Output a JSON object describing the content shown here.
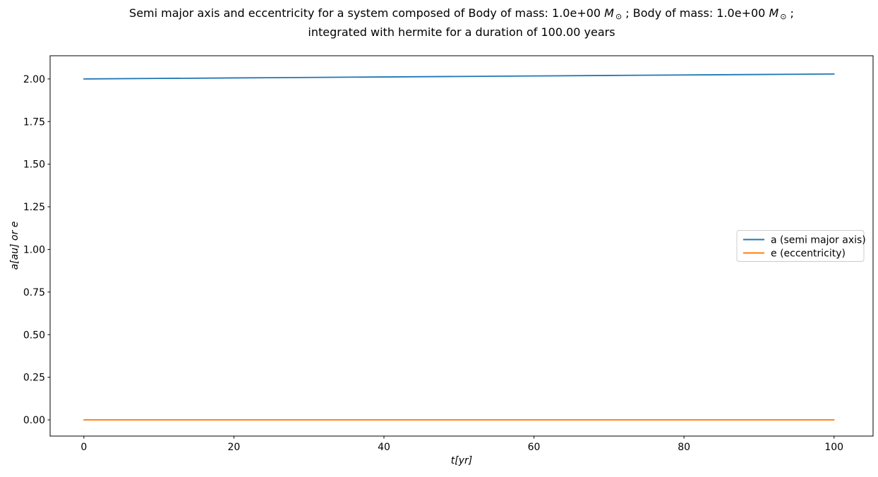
{
  "title": {
    "l1a": "Semi major axis and eccentricity for a system composed of Body of mass: 1.0e+00 ",
    "msun_letter": "M",
    "sun_symbol": "⊙",
    "l1b": " ; Body of mass: 1.0e+00 ",
    "l1c": " ;",
    "line2": "integrated with hermite for a duration of 100.00 years"
  },
  "chart_data": {
    "type": "line",
    "title_line1": "Semi major axis and eccentricity for a system composed of Body of mass: 1.0e+00 M⊙ ; Body of mass: 1.0e+00 M⊙ ;",
    "title_line2": "integrated with hermite for a duration of 100.00 years",
    "xlabel": "t[yr]",
    "ylabel": "a[au] or e",
    "x": [
      0,
      10,
      20,
      30,
      40,
      50,
      60,
      70,
      80,
      90,
      100
    ],
    "series": [
      {
        "key": "a",
        "name": "a (semi major axis)",
        "color": "#1f77b4",
        "values": [
          2.0,
          2.0029,
          2.0058,
          2.0087,
          2.0116,
          2.0145,
          2.0174,
          2.0203,
          2.0232,
          2.0261,
          2.029
        ]
      },
      {
        "key": "e",
        "name": "e (eccentricity)",
        "color": "#ff7f0e",
        "values": [
          0.0,
          0.0,
          0.0,
          0.0,
          0.0,
          0.0,
          0.0,
          0.0,
          0.0,
          0.0,
          0.0
        ]
      }
    ],
    "xlim": [
      -4.5,
      105.2
    ],
    "ylim": [
      -0.095,
      2.136
    ],
    "xticks": [
      0,
      20,
      40,
      60,
      80,
      100
    ],
    "xtick_labels": [
      "0",
      "20",
      "40",
      "60",
      "80",
      "100"
    ],
    "yticks": [
      0.0,
      0.25,
      0.5,
      0.75,
      1.0,
      1.25,
      1.5,
      1.75,
      2.0
    ],
    "ytick_labels": [
      "0.00",
      "0.25",
      "0.50",
      "0.75",
      "1.00",
      "1.25",
      "1.50",
      "1.75",
      "2.00"
    ],
    "grid": false,
    "legend_position": "center right",
    "legend_entries": [
      "a (semi major axis)",
      "e (eccentricity)"
    ],
    "colors": {
      "axis": "#000000",
      "legend_border": "#cccccc",
      "background": "#ffffff"
    }
  }
}
